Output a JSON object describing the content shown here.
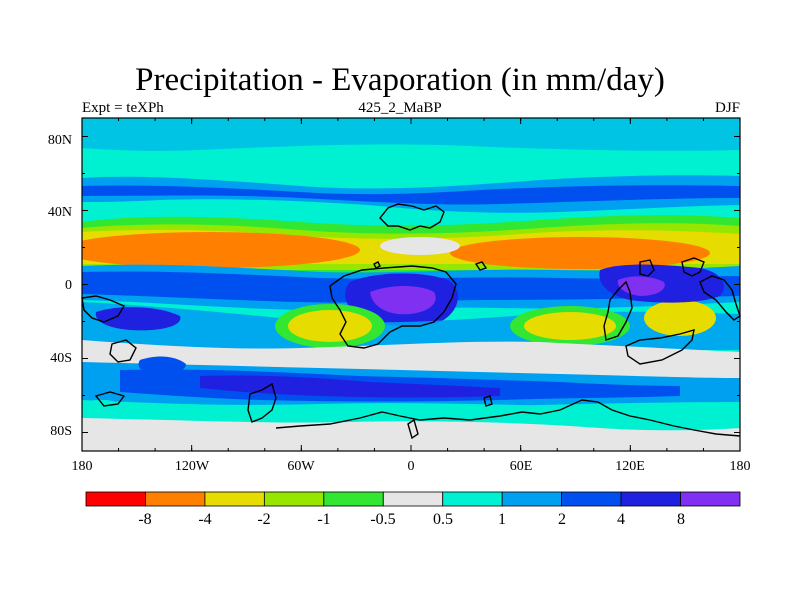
{
  "chart_data": {
    "type": "heatmap",
    "title": "Precipitation - Evaporation (in mm/day)",
    "subtitle_left": "Expt = teXPh",
    "subtitle_center": "425_2_MaBP",
    "subtitle_right": "DJF",
    "x_range": [
      -180,
      180
    ],
    "y_range": [
      -90,
      90
    ],
    "x_ticks": [
      "180",
      "120W",
      "60W",
      "0",
      "60E",
      "120E",
      "180"
    ],
    "y_ticks": [
      "80N",
      "40N",
      "0",
      "40S",
      "80S"
    ],
    "colorbar": {
      "colors": [
        "#ff0000",
        "#ff8000",
        "#e6dc00",
        "#96e600",
        "#32e632",
        "#e6e6e6",
        "#00f0d2",
        "#00a0f0",
        "#0050f0",
        "#2020e0",
        "#8030f0"
      ],
      "labels": [
        "-8",
        "-4",
        "-2",
        "-1",
        "-0.5",
        "0.5",
        "1",
        "2",
        "4",
        "8"
      ]
    }
  }
}
